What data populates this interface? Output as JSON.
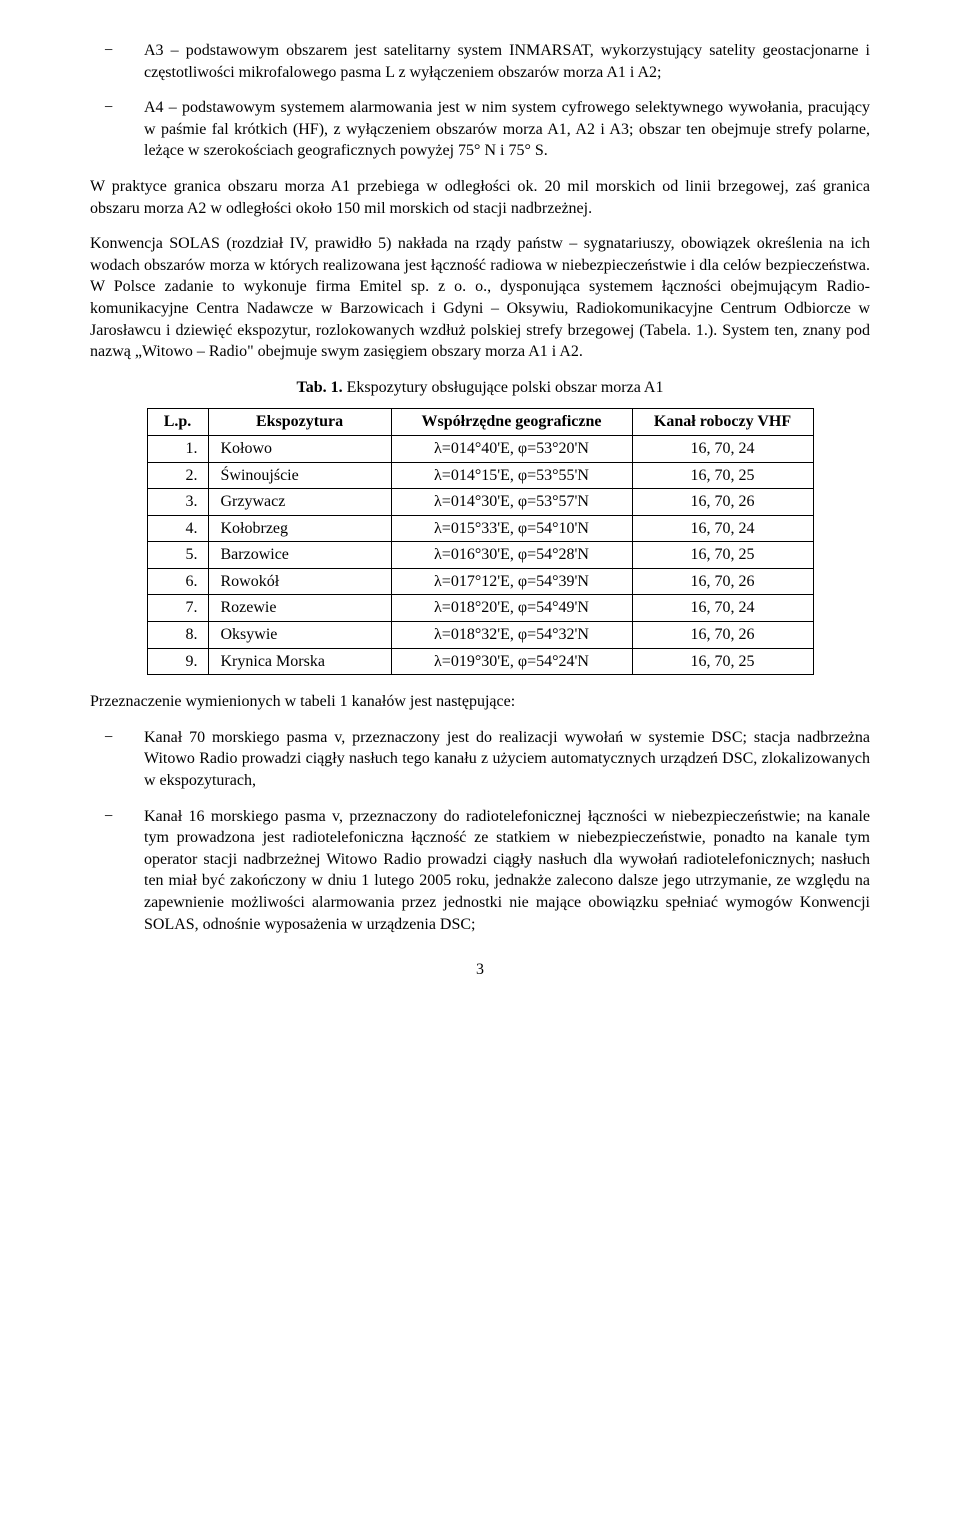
{
  "topBullets": [
    "A3 – podstawowym obszarem jest satelitarny system INMARSAT, wykorzystujący satelity geostacjonarne i częstotliwości mikrofalowego pasma L z wyłączeniem obszarów morza A1 i A2;",
    "A4 – podstawowym systemem alarmowania jest w nim system cyfrowego selektywnego wywołania, pracujący w paśmie fal krótkich (HF), z wyłączeniem obszarów morza A1, A2 i A3; obszar ten obejmuje strefy polarne, leżące w szerokościach geograficznych powyżej 75° N i 75° S."
  ],
  "para1": "W praktyce granica obszaru morza A1 przebiega w odległości ok. 20 mil morskich od linii brzegowej, zaś granica obszaru morza A2 w odległości około 150 mil morskich od stacji nadbrzeżnej.",
  "para2": "Konwencja SOLAS (rozdział IV, prawidło 5) nakłada na rządy państw – sygnatariuszy, obowiązek określenia na ich wodach obszarów morza w których realizowana jest łączność radiowa w niebezpieczeństwie i dla celów bezpieczeństwa. W Polsce zadanie to wykonuje firma Emitel sp. z o. o., dysponująca systemem łączności obejmującym Radio-komunikacyjne Centra Nadawcze w Barzowicach i Gdyni – Oksywiu, Radiokomunikacyjne Centrum Odbiorcze w Jarosławcu i dziewięć ekspozytur, rozlokowanych wzdłuż polskiej strefy brzegowej (Tabela. 1.). System ten, znany pod nazwą „Witowo – Radio\" obejmuje swym zasięgiem obszary morza A1 i A2.",
  "tableCaption": {
    "prefix": "Tab. 1. ",
    "rest": "Ekspozytury obsługujące polski obszar morza A1"
  },
  "table": {
    "columns": [
      "L.p.",
      "Ekspozytura",
      "Współrzędne geograficzne",
      "Kanał roboczy VHF"
    ],
    "rows": [
      [
        "1.",
        "Kołowo",
        "λ=014°40'E, φ=53°20'N",
        "16, 70, 24"
      ],
      [
        "2.",
        "Świnoujście",
        "λ=014°15'E, φ=53°55'N",
        "16, 70, 25"
      ],
      [
        "3.",
        "Grzywacz",
        "λ=014°30'E, φ=53°57'N",
        "16, 70, 26"
      ],
      [
        "4.",
        "Kołobrzeg",
        "λ=015°33'E, φ=54°10'N",
        "16, 70, 24"
      ],
      [
        "5.",
        "Barzowice",
        "λ=016°30'E, φ=54°28'N",
        "16, 70, 25"
      ],
      [
        "6.",
        "Rowokół",
        "λ=017°12'E, φ=54°39'N",
        "16, 70, 26"
      ],
      [
        "7.",
        "Rozewie",
        "λ=018°20'E, φ=54°49'N",
        "16, 70, 24"
      ],
      [
        "8.",
        "Oksywie",
        "λ=018°32'E, φ=54°32'N",
        "16, 70, 26"
      ],
      [
        "9.",
        "Krynica Morska",
        "λ=019°30'E, φ=54°24'N",
        "16, 70, 25"
      ]
    ]
  },
  "para3": "Przeznaczenie wymienionych w tabeli 1 kanałów jest następujące:",
  "bottomBullets": [
    "Kanał 70 morskiego pasma v, przeznaczony jest do realizacji wywołań w systemie DSC; stacja nadbrzeżna Witowo Radio prowadzi ciągły nasłuch tego kanału z użyciem automatycznych urządzeń DSC, zlokalizowanych w ekspozyturach,",
    "Kanał 16 morskiego pasma v, przeznaczony do radiotelefonicznej łączności w niebezpieczeństwie; na kanale tym prowadzona jest radiotelefoniczna łączność ze statkiem w niebezpieczeństwie, ponadto na kanale tym operator stacji nadbrzeżnej Witowo Radio prowadzi ciągły nasłuch dla wywołań radiotelefonicznych; nasłuch ten miał być zakończony w dniu 1 lutego 2005 roku, jednakże zalecono dalsze jego utrzymanie, ze względu na zapewnienie możliwości alarmowania przez jednostki nie mające obowiązku spełniać wymogów Konwencji SOLAS, odnośnie wyposażenia w urządzenia DSC;"
  ],
  "pageNumber": "3",
  "dash": "−"
}
